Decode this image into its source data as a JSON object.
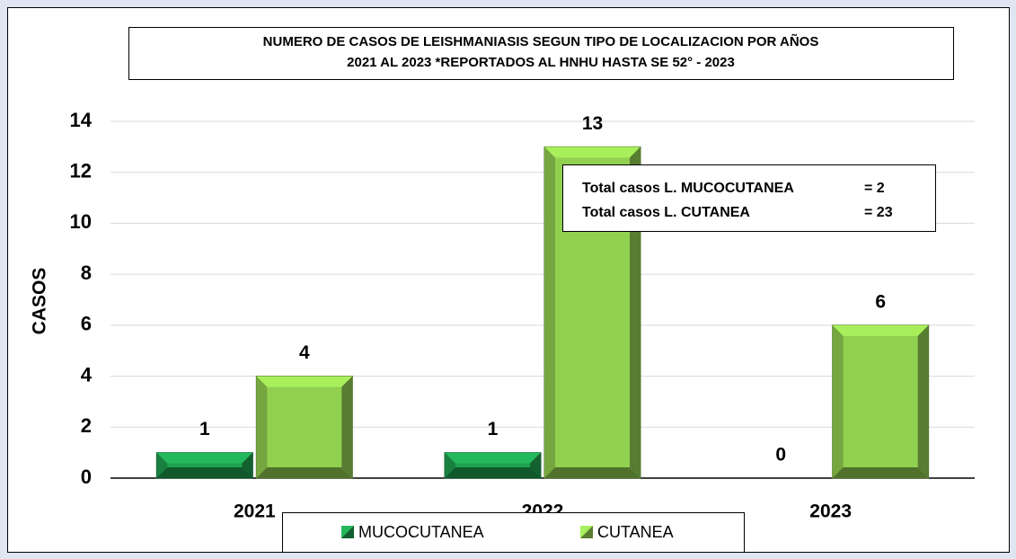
{
  "chart_data": {
    "type": "bar",
    "title": [
      "NUMERO DE CASOS DE LEISHMANIASIS SEGUN TIPO DE LOCALIZACION POR AÑOS",
      "2021 AL 2023 *REPORTADOS AL HNHU HASTA SE 52° - 2023"
    ],
    "y_label": "CASOS",
    "categories": [
      "2021",
      "2022",
      "2023"
    ],
    "series": [
      {
        "name": "MUCOCUTANEA",
        "color": "#1fa050",
        "values": [
          1,
          1,
          0
        ]
      },
      {
        "name": "CUTANEA",
        "color": "#92d050",
        "values": [
          4,
          13,
          6
        ]
      }
    ],
    "ylim": [
      0,
      14
    ],
    "yticks": [
      0,
      2,
      4,
      6,
      8,
      10,
      12,
      14
    ],
    "grid": true,
    "legend": "bottom",
    "annotations": [
      [
        "Total casos L. MUCOCUTANEA",
        "= 2"
      ],
      [
        "Total casos L. CUTANEA",
        "= 23"
      ]
    ]
  }
}
